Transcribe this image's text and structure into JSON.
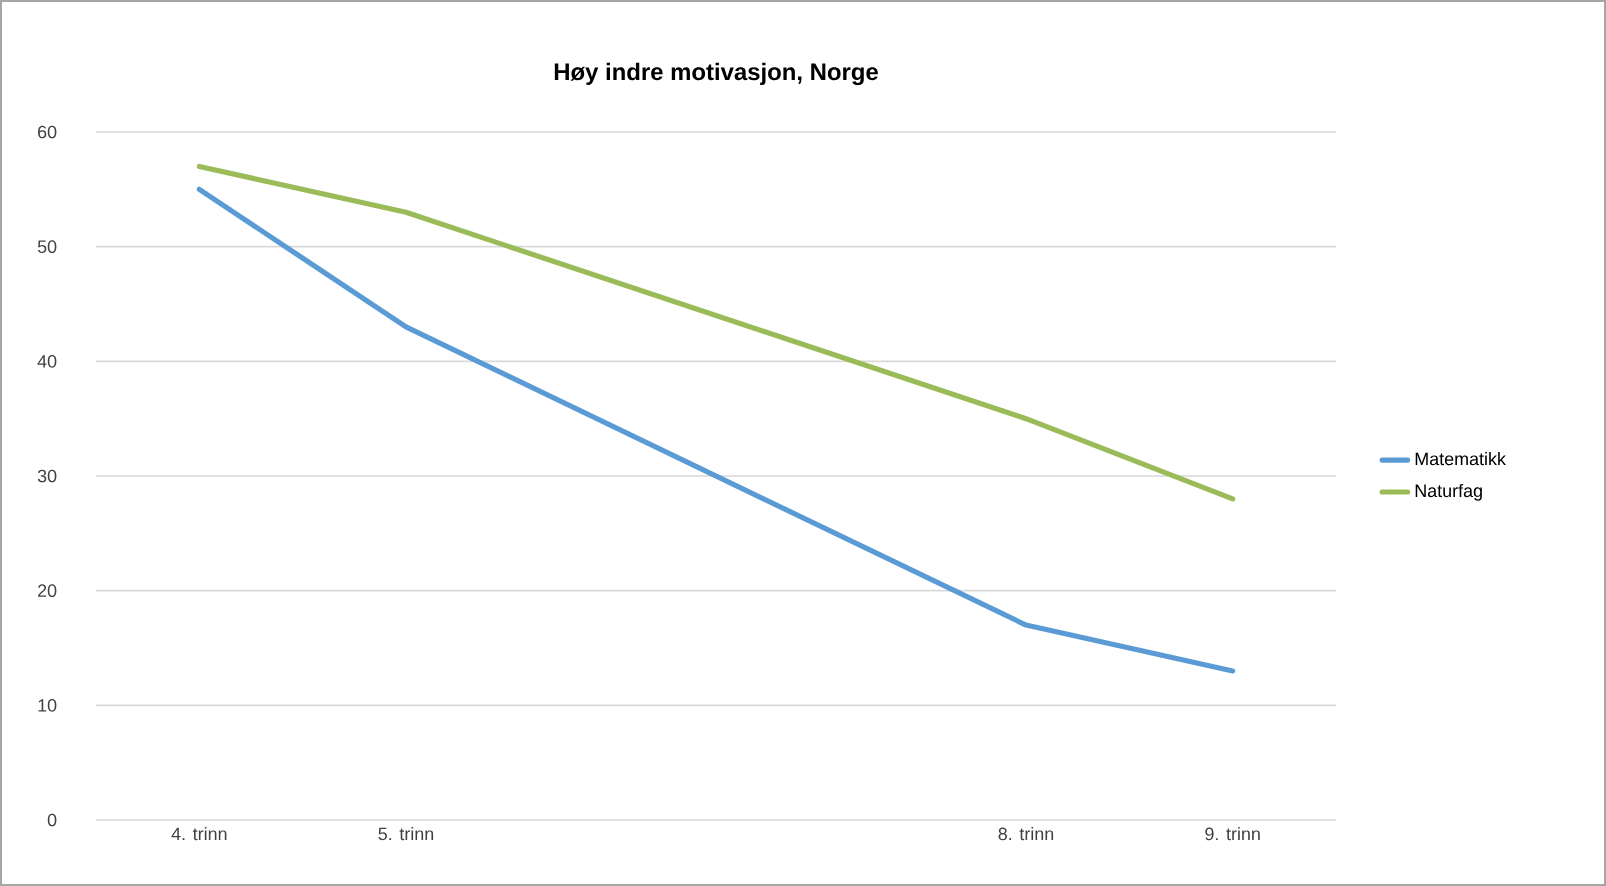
{
  "chart_data": {
    "type": "line",
    "title": "Høy indre motivasjon, Norge",
    "x": [
      4,
      5,
      8,
      9
    ],
    "series": [
      {
        "name": "Matematikk",
        "color": "#5b9bd5",
        "values": [
          55,
          43,
          17,
          13
        ]
      },
      {
        "name": "Naturfag",
        "color": "#9bbb59",
        "values": [
          57,
          53,
          35,
          28
        ]
      }
    ],
    "xlim": [
      3.5,
      9.5
    ],
    "xticks": [
      {
        "value": 4,
        "label": "4. trinn"
      },
      {
        "value": 5,
        "label": "5. trinn"
      },
      {
        "value": 8,
        "label": "8. trinn"
      },
      {
        "value": 9,
        "label": "9. trinn"
      }
    ],
    "ylim": [
      0,
      60
    ],
    "yticks": [
      0,
      10,
      20,
      30,
      40,
      50,
      60
    ],
    "grid": "y",
    "legend": "right"
  }
}
